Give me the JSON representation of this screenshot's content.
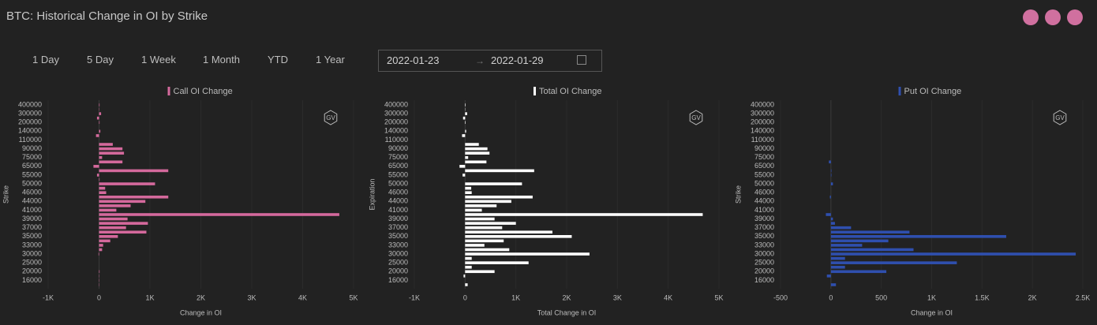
{
  "header": {
    "title": "BTC: Historical Change in OI by Strike"
  },
  "controls": {
    "ranges": [
      "1 Day",
      "5 Day",
      "1 Week",
      "1 Month",
      "YTD",
      "1 Year"
    ],
    "start_date": "2022-01-23",
    "end_date": "2022-01-29"
  },
  "watermark": "GV",
  "chart_data": [
    {
      "type": "bar",
      "orientation": "horizontal",
      "xlabel": "Change in OI",
      "ylabel": "Strike",
      "grid": true,
      "categories": [
        "400000",
        null,
        "300000",
        null,
        "200000",
        null,
        "140000",
        null,
        "110000",
        null,
        "90000",
        null,
        "75000",
        null,
        "65000",
        null,
        "55000",
        null,
        "50000",
        null,
        "46000",
        null,
        "44000",
        null,
        "41000",
        null,
        "39000",
        null,
        "37000",
        null,
        "35000",
        null,
        "33000",
        null,
        "30000",
        null,
        "25000",
        null,
        "20000",
        null,
        "16000",
        null
      ],
      "series": [
        {
          "name": "Call OI Change",
          "color": "#d4699c",
          "values": [
            10,
            5,
            40,
            -40,
            10,
            0,
            25,
            -60,
            0,
            270,
            460,
            490,
            60,
            460,
            -110,
            1360,
            -40,
            10,
            1100,
            120,
            140,
            1360,
            910,
            620,
            340,
            4720,
            560,
            960,
            530,
            930,
            370,
            220,
            80,
            60,
            -10,
            0,
            0,
            0,
            10,
            5,
            5,
            5
          ]
        }
      ],
      "xlim": [
        -1000,
        5000
      ],
      "xticks": [
        {
          "value": -1000,
          "label": "-1K"
        },
        0,
        {
          "value": 1000,
          "label": "1K"
        },
        {
          "value": 2000,
          "label": "2K"
        },
        {
          "value": 3000,
          "label": "3K"
        },
        {
          "value": 4000,
          "label": "4K"
        },
        {
          "value": 5000,
          "label": "5K"
        }
      ]
    },
    {
      "type": "bar",
      "orientation": "horizontal",
      "xlabel": "Total Change in OI",
      "ylabel": "Expiration",
      "grid": true,
      "categories": [
        "400000",
        null,
        "300000",
        null,
        "200000",
        null,
        "140000",
        null,
        "110000",
        null,
        "90000",
        null,
        "75000",
        null,
        "65000",
        null,
        "55000",
        null,
        "50000",
        null,
        "46000",
        null,
        "44000",
        null,
        "41000",
        null,
        "39000",
        null,
        "37000",
        null,
        "35000",
        null,
        "33000",
        null,
        "30000",
        null,
        "25000",
        null,
        "20000",
        null,
        "16000",
        null
      ],
      "series": [
        {
          "name": "Total OI Change",
          "color": "#ffffff",
          "values": [
            10,
            5,
            40,
            -40,
            10,
            0,
            20,
            -60,
            0,
            270,
            440,
            480,
            60,
            420,
            -110,
            1360,
            -50,
            0,
            1120,
            120,
            130,
            1330,
            910,
            620,
            330,
            4680,
            580,
            1000,
            730,
            1720,
            2100,
            760,
            380,
            870,
            2450,
            130,
            1250,
            130,
            580,
            -30,
            0,
            50
          ]
        }
      ],
      "xlim": [
        -1000,
        5000
      ],
      "xticks": [
        {
          "value": -1000,
          "label": "-1K"
        },
        0,
        {
          "value": 1000,
          "label": "1K"
        },
        {
          "value": 2000,
          "label": "2K"
        },
        {
          "value": 3000,
          "label": "3K"
        },
        {
          "value": 4000,
          "label": "4K"
        },
        {
          "value": 5000,
          "label": "5K"
        }
      ]
    },
    {
      "type": "bar",
      "orientation": "horizontal",
      "xlabel": "Change in OI",
      "ylabel": "Strike",
      "grid": true,
      "categories": [
        "400000",
        null,
        "300000",
        null,
        "200000",
        null,
        "140000",
        null,
        "110000",
        null,
        "90000",
        null,
        "75000",
        null,
        "65000",
        null,
        "55000",
        null,
        "50000",
        null,
        "46000",
        null,
        "44000",
        null,
        "41000",
        null,
        "39000",
        null,
        "37000",
        null,
        "35000",
        null,
        "33000",
        null,
        "30000",
        null,
        "25000",
        null,
        "20000",
        null,
        "16000",
        null
      ],
      "series": [
        {
          "name": "Put OI Change",
          "color": "#2f4fae",
          "values": [
            0,
            0,
            0,
            0,
            0,
            0,
            0,
            0,
            0,
            0,
            0,
            0,
            0,
            -20,
            0,
            5,
            5,
            0,
            20,
            0,
            0,
            -10,
            0,
            0,
            0,
            -50,
            20,
            40,
            200,
            780,
            1740,
            570,
            310,
            820,
            2430,
            140,
            1250,
            140,
            550,
            -40,
            0,
            50
          ]
        }
      ],
      "xlim": [
        -500,
        2500
      ],
      "xticks": [
        -500,
        0,
        500,
        {
          "value": 1000,
          "label": "1K"
        },
        {
          "value": 1500,
          "label": "1.5K"
        },
        {
          "value": 2000,
          "label": "2K"
        },
        {
          "value": 2500,
          "label": "2.5K"
        }
      ]
    }
  ]
}
